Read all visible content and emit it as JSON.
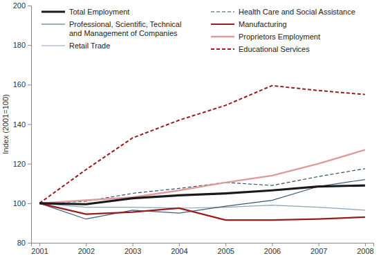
{
  "chart_data": {
    "type": "line",
    "y_label": "Index (2001=100)",
    "categories": [
      "2001",
      "2002",
      "2003",
      "2004",
      "2005",
      "2006",
      "2007",
      "2008"
    ],
    "ylim": [
      80,
      200
    ],
    "yticks": [
      80,
      100,
      120,
      140,
      160,
      180,
      200
    ],
    "grid": false,
    "series": [
      {
        "name": "Total Employment",
        "color": "#1a1a1a",
        "line_style": "solid",
        "values": [
          100,
          99.5,
          102.5,
          104,
          105,
          106.5,
          108.5,
          109
        ]
      },
      {
        "name": "Professional, Scientific, Technical and Management of Companies",
        "color": "#3d5a78",
        "line_style": "solid",
        "values": [
          100,
          92,
          96.5,
          95,
          98.5,
          101.5,
          108.5,
          112
        ]
      },
      {
        "name": "Retail Trade",
        "color": "#8aa3bb",
        "line_style": "solid",
        "values": [
          100,
          98,
          98,
          97.5,
          98,
          99,
          98,
          96.5
        ]
      },
      {
        "name": "Health Care and Social Assistance",
        "color": "#2e4f6e",
        "line_style": "dashed",
        "values": [
          100,
          101,
          105,
          107.5,
          110.5,
          109,
          113.5,
          117.5
        ]
      },
      {
        "name": "Manufacturing",
        "color": "#9b1b1b",
        "line_style": "solid",
        "values": [
          100,
          94.5,
          95.5,
          97.5,
          91.5,
          91.5,
          92,
          93
        ]
      },
      {
        "name": "Proprietors Employment",
        "color": "#e09a9a",
        "line_style": "solid",
        "values": [
          100,
          101.5,
          103,
          106.5,
          110.5,
          114,
          120,
          127
        ]
      },
      {
        "name": "Educational Services",
        "color": "#9b1b1b",
        "line_style": "dashed",
        "values": [
          100,
          117,
          133,
          142,
          149.5,
          159.5,
          157,
          155
        ]
      }
    ]
  }
}
